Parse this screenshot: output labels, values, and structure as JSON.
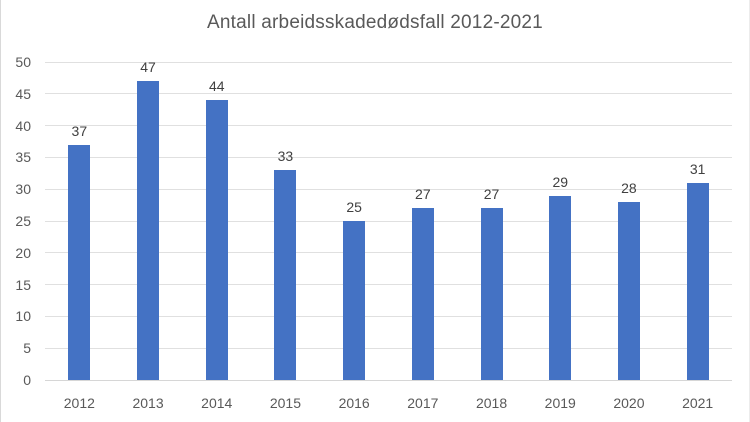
{
  "chart_data": {
    "type": "bar",
    "title": "Antall arbeidsskadedødsfall 2012-2021",
    "categories": [
      "2012",
      "2013",
      "2014",
      "2015",
      "2016",
      "2017",
      "2018",
      "2019",
      "2020",
      "2021"
    ],
    "values": [
      37,
      47,
      44,
      33,
      25,
      27,
      27,
      29,
      28,
      31
    ],
    "data_labels": [
      "37",
      "47",
      "44",
      "33",
      "25",
      "27",
      "27",
      "29",
      "28",
      "31"
    ],
    "xlabel": "",
    "ylabel": "",
    "ylim": [
      0,
      50
    ],
    "ytick_step": 5,
    "ytick_labels": [
      "0",
      "5",
      "10",
      "15",
      "20",
      "25",
      "30",
      "35",
      "40",
      "45",
      "50"
    ],
    "grid": true,
    "legend": false,
    "colors": {
      "bar": "#4472C4",
      "gridline": "#e0e0e0",
      "axis_line": "#d6d6d6",
      "title_text": "#595959",
      "axis_text": "#595959",
      "data_label_text": "#404040"
    }
  }
}
